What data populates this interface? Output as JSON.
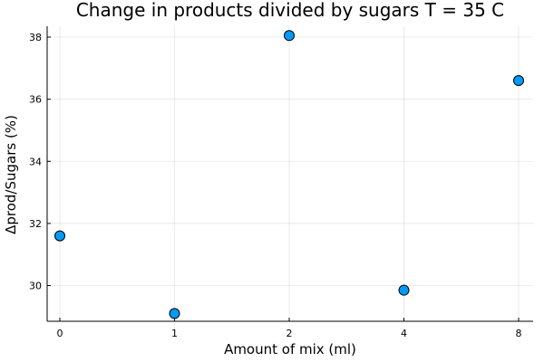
{
  "chart_data": {
    "type": "scatter",
    "title": "Change in products divided by sugars T = 35 C",
    "xlabel": "Amount of mix (ml)",
    "ylabel": "Δprod/Sugars (%)",
    "x_tick_labels": [
      "0",
      "1",
      "2",
      "4",
      "8"
    ],
    "y_ticks": [
      30,
      32,
      34,
      36,
      38
    ],
    "ylim": [
      28.85,
      38.35
    ],
    "grid": true,
    "legend": "none",
    "marker_color": "#009AFA",
    "series": [
      {
        "points": [
          {
            "x": "0",
            "y": 31.6
          },
          {
            "x": "1",
            "y": 29.1
          },
          {
            "x": "2",
            "y": 38.05
          },
          {
            "x": "4",
            "y": 29.85
          },
          {
            "x": "8",
            "y": 36.6
          }
        ]
      }
    ]
  }
}
